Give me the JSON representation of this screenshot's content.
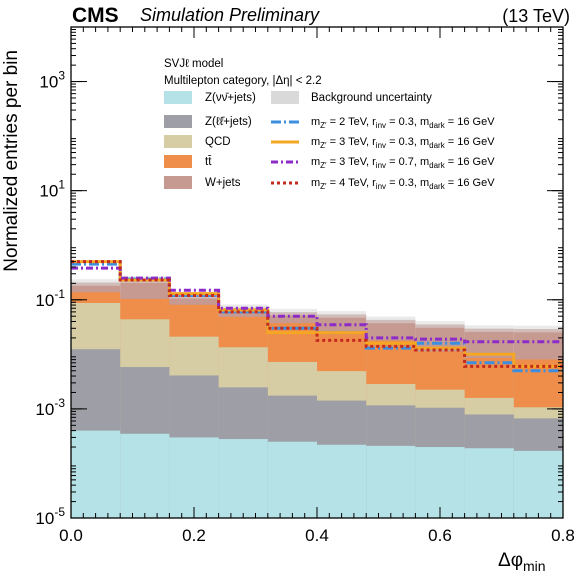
{
  "header": {
    "experiment": "CMS",
    "status": "Simulation Preliminary",
    "energy": "(13 TeV)"
  },
  "legend": {
    "model": "SVJℓ model",
    "category": "Multilepton category,  |Δη| < 2.2"
  },
  "colors": {
    "znunu": "#b4e2e6",
    "zll": "#9d9ea6",
    "qcd": "#d6cda4",
    "ttbar": "#ee8e4a",
    "wjets": "#c69991",
    "uncertainty": "#d9d9d9",
    "sig1": "#3c8fe0",
    "sig2": "#f5a623",
    "sig3": "#8d2bc8",
    "sig4": "#c42b1e"
  },
  "chart_data": {
    "type": "histogram",
    "xlabel": "Δφmin",
    "ylabel": "Normalized entries per bin",
    "xlim": [
      0.0,
      0.8
    ],
    "ylim": [
      1e-05,
      10000
    ],
    "log_y": true,
    "x_ticks": [
      "0.0",
      "0.2",
      "0.4",
      "0.6",
      "0.8"
    ],
    "y_ticks": [
      "10-5",
      "10-3",
      "10-1",
      "101",
      "103"
    ],
    "bin_edges": [
      0.0,
      0.08,
      0.16,
      0.24,
      0.32,
      0.4,
      0.48,
      0.56,
      0.64,
      0.72,
      0.8
    ],
    "stack": [
      {
        "name": "Z(νν̄+jets)",
        "color": "znunu",
        "values": [
          0.0004,
          0.00035,
          0.0003,
          0.00028,
          0.00025,
          0.00022,
          0.00021,
          0.0002,
          0.00019,
          0.00017
        ]
      },
      {
        "name": "Z(ℓℓ̄+jets)",
        "color": "zll",
        "values": [
          0.012,
          0.0055,
          0.0038,
          0.0022,
          0.0015,
          0.0012,
          0.00095,
          0.00085,
          0.0006,
          0.0005
        ]
      },
      {
        "name": "QCD",
        "color": "qcd",
        "values": [
          0.075,
          0.038,
          0.017,
          0.011,
          0.0055,
          0.0035,
          0.0017,
          0.0012,
          0.0008,
          0.0004
        ]
      },
      {
        "name": "tt̄",
        "color": "ttbar",
        "values": [
          0.05,
          0.06,
          0.06,
          0.035,
          0.03,
          0.02,
          0.015,
          0.009,
          0.007,
          0.007
        ]
      },
      {
        "name": "W+jets",
        "color": "wjets",
        "values": [
          0.07,
          0.13,
          0.04,
          0.023,
          0.022,
          0.029,
          0.025,
          0.024,
          0.021,
          0.021
        ]
      }
    ],
    "uncertainty_label": "Background uncertainty",
    "signals": [
      {
        "name": "mZ′ = 2 TeV, rinv = 0.3, mdark = 16 GeV",
        "label_a": "m",
        "label_b": "Z′",
        "label_c": " = 2 TeV, r",
        "label_d": "inv",
        "label_e": " = 0.3, m",
        "label_f": "dark",
        "label_g": " = 16 GeV",
        "color": "sig1",
        "dash": "10,3,2,3",
        "values": [
          0.45,
          0.24,
          0.12,
          0.06,
          0.03,
          0.025,
          0.013,
          0.016,
          0.007,
          0.005
        ]
      },
      {
        "name": "mZ′ = 3 TeV, rinv = 0.3, mdark = 16 GeV",
        "label_a": "m",
        "label_b": "Z′",
        "label_c": " = 3 TeV, r",
        "label_d": "inv",
        "label_e": " = 0.3, m",
        "label_f": "dark",
        "label_g": " = 16 GeV",
        "color": "sig2",
        "dash": "",
        "values": [
          0.5,
          0.23,
          0.13,
          0.065,
          0.025,
          0.025,
          0.016,
          0.013,
          0.01,
          0.006
        ]
      },
      {
        "name": "mZ′ = 3 TeV, rinv = 0.7, mdark = 16 GeV",
        "label_a": "m",
        "label_b": "Z′",
        "label_c": " = 3 TeV, r",
        "label_d": "inv",
        "label_e": " = 0.7, m",
        "label_f": "dark",
        "label_g": " = 16 GeV",
        "color": "sig3",
        "dash": "7,3,2,3",
        "values": [
          0.38,
          0.25,
          0.15,
          0.07,
          0.05,
          0.035,
          0.02,
          0.019,
          0.017,
          0.017
        ]
      },
      {
        "name": "mZ′ = 4 TeV, rinv = 0.3, mdark = 16 GeV",
        "label_a": "m",
        "label_b": "Z′",
        "label_c": " = 4 TeV, r",
        "label_d": "inv",
        "label_e": " = 0.3, m",
        "label_f": "dark",
        "label_g": " = 16 GeV",
        "color": "sig4",
        "dash": "3,3",
        "values": [
          0.5,
          0.23,
          0.12,
          0.06,
          0.03,
          0.018,
          0.014,
          0.012,
          0.006,
          0.006
        ]
      }
    ]
  }
}
